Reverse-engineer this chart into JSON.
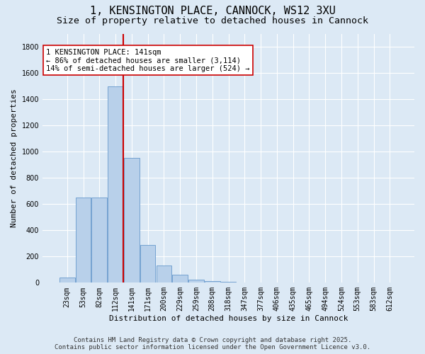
{
  "title": "1, KENSINGTON PLACE, CANNOCK, WS12 3XU",
  "subtitle": "Size of property relative to detached houses in Cannock",
  "xlabel": "Distribution of detached houses by size in Cannock",
  "ylabel": "Number of detached properties",
  "categories": [
    "23sqm",
    "53sqm",
    "82sqm",
    "112sqm",
    "141sqm",
    "171sqm",
    "200sqm",
    "229sqm",
    "259sqm",
    "288sqm",
    "318sqm",
    "347sqm",
    "377sqm",
    "406sqm",
    "435sqm",
    "465sqm",
    "494sqm",
    "524sqm",
    "553sqm",
    "583sqm",
    "612sqm"
  ],
  "values": [
    40,
    650,
    650,
    1500,
    950,
    290,
    130,
    60,
    22,
    15,
    8,
    3,
    2,
    2,
    0,
    0,
    0,
    0,
    0,
    0,
    0
  ],
  "bar_color": "#b8d0ea",
  "bar_edge_color": "#6699cc",
  "vline_x_index": 4,
  "vline_color": "#cc0000",
  "annotation_text": "1 KENSINGTON PLACE: 141sqm\n← 86% of detached houses are smaller (3,114)\n14% of semi-detached houses are larger (524) →",
  "annotation_box_color": "#ffffff",
  "annotation_box_edge_color": "#cc0000",
  "ylim": [
    0,
    1900
  ],
  "yticks": [
    0,
    200,
    400,
    600,
    800,
    1000,
    1200,
    1400,
    1600,
    1800
  ],
  "background_color": "#dce9f5",
  "plot_bg_color": "#dce9f5",
  "grid_color": "#ffffff",
  "footer_line1": "Contains HM Land Registry data © Crown copyright and database right 2025.",
  "footer_line2": "Contains public sector information licensed under the Open Government Licence v3.0.",
  "title_fontsize": 11,
  "subtitle_fontsize": 9.5,
  "label_fontsize": 8,
  "tick_fontsize": 7,
  "annotation_fontsize": 7.5,
  "footer_fontsize": 6.5
}
